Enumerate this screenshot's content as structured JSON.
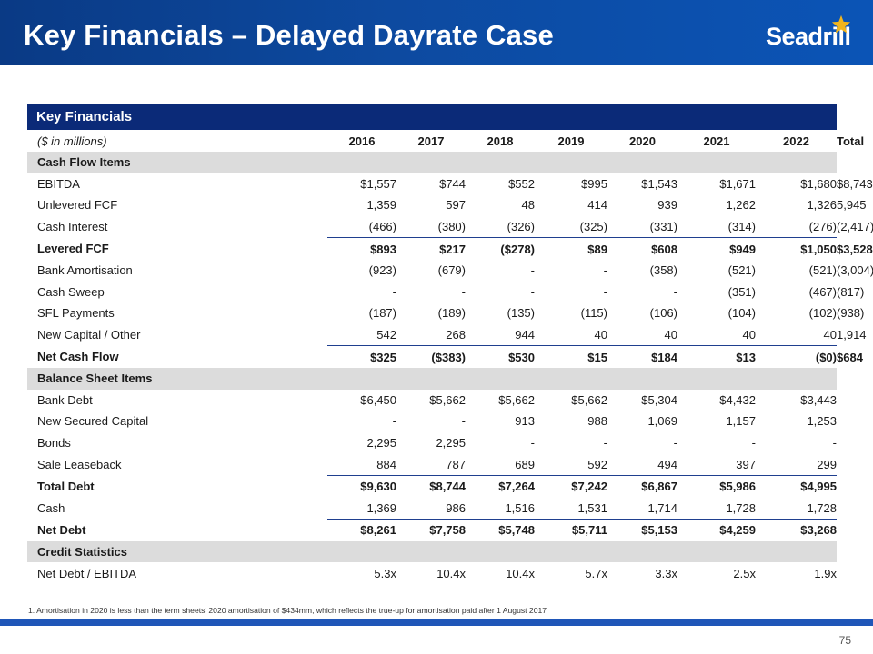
{
  "header": {
    "title": "Key Financials – Delayed Dayrate Case",
    "logo_text": "Seadrill",
    "logo_icon": "star-icon",
    "colors": {
      "header_bg": "#0d4aa0",
      "logo_star": "#f2b51d",
      "banner_bg": "#0b2a78",
      "section_bg": "#dcdcdc"
    }
  },
  "table": {
    "banner": "Key Financials",
    "units_label": "($ in millions)",
    "years": [
      "2016",
      "2017",
      "2018",
      "2019",
      "2020",
      "2021",
      "2022",
      "Total"
    ],
    "sections": [
      {
        "title": "Cash Flow Items",
        "rows": [
          {
            "label": "EBITDA",
            "values": [
              "$1,557",
              "$744",
              "$552",
              "$995",
              "$1,543",
              "$1,671",
              "$1,680",
              "$8,743"
            ],
            "bold": false
          },
          {
            "label": "Unlevered FCF",
            "values": [
              "1,359",
              "597",
              "48",
              "414",
              "939",
              "1,262",
              "1,326",
              "5,945"
            ],
            "bold": false
          },
          {
            "label": "Cash Interest",
            "values": [
              "(466)",
              "(380)",
              "(326)",
              "(325)",
              "(331)",
              "(314)",
              "(276)",
              "(2,417)"
            ],
            "bold": false
          },
          {
            "label": "Levered FCF",
            "values": [
              "$893",
              "$217",
              "($278)",
              "$89",
              "$608",
              "$949",
              "$1,050",
              "$3,528"
            ],
            "bold": true
          },
          {
            "label": "Bank Amortisation",
            "values": [
              "(923)",
              "(679)",
              "-",
              "-",
              "(358)",
              "(521)",
              "(521)",
              "(3,004)"
            ],
            "bold": false
          },
          {
            "label": "Cash Sweep",
            "values": [
              "-",
              "-",
              "-",
              "-",
              "-",
              "(351)",
              "(467)",
              "(817)"
            ],
            "bold": false
          },
          {
            "label": "SFL Payments",
            "values": [
              "(187)",
              "(189)",
              "(135)",
              "(115)",
              "(106)",
              "(104)",
              "(102)",
              "(938)"
            ],
            "bold": false
          },
          {
            "label": "New Capital / Other",
            "values": [
              "542",
              "268",
              "944",
              "40",
              "40",
              "40",
              "40",
              "1,914"
            ],
            "bold": false
          },
          {
            "label": "Net Cash Flow",
            "values": [
              "$325",
              "($383)",
              "$530",
              "$15",
              "$184",
              "$13",
              "($0)",
              "$684"
            ],
            "bold": true
          }
        ]
      },
      {
        "title": "Balance Sheet Items",
        "rows": [
          {
            "label": "Bank Debt",
            "values": [
              "$6,450",
              "$5,662",
              "$5,662",
              "$5,662",
              "$5,304",
              "$4,432",
              "$3,443",
              ""
            ],
            "bold": false
          },
          {
            "label": "New Secured Capital",
            "values": [
              "-",
              "-",
              "913",
              "988",
              "1,069",
              "1,157",
              "1,253",
              ""
            ],
            "bold": false
          },
          {
            "label": "Bonds",
            "values": [
              "2,295",
              "2,295",
              "-",
              "-",
              "-",
              "-",
              "-",
              ""
            ],
            "bold": false
          },
          {
            "label": "Sale Leaseback",
            "values": [
              "884",
              "787",
              "689",
              "592",
              "494",
              "397",
              "299",
              ""
            ],
            "bold": false
          },
          {
            "label": "Total Debt",
            "values": [
              "$9,630",
              "$8,744",
              "$7,264",
              "$7,242",
              "$6,867",
              "$5,986",
              "$4,995",
              ""
            ],
            "bold": true
          },
          {
            "label": "Cash",
            "values": [
              "1,369",
              "986",
              "1,516",
              "1,531",
              "1,714",
              "1,728",
              "1,728",
              ""
            ],
            "bold": false
          },
          {
            "label": "Net Debt",
            "values": [
              "$8,261",
              "$7,758",
              "$5,748",
              "$5,711",
              "$5,153",
              "$4,259",
              "$3,268",
              ""
            ],
            "bold": true
          }
        ]
      },
      {
        "title": "Credit Statistics",
        "rows": [
          {
            "label": "Net Debt / EBITDA",
            "values": [
              "5.3x",
              "10.4x",
              "10.4x",
              "5.7x",
              "3.3x",
              "2.5x",
              "1.9x",
              ""
            ],
            "bold": false
          }
        ]
      }
    ]
  },
  "footnote": "1. Amortisation in 2020 is less than the term sheets’ 2020 amortisation of $434mm, which reflects the true-up for amortisation paid after 1 August 2017",
  "page_number": "75"
}
